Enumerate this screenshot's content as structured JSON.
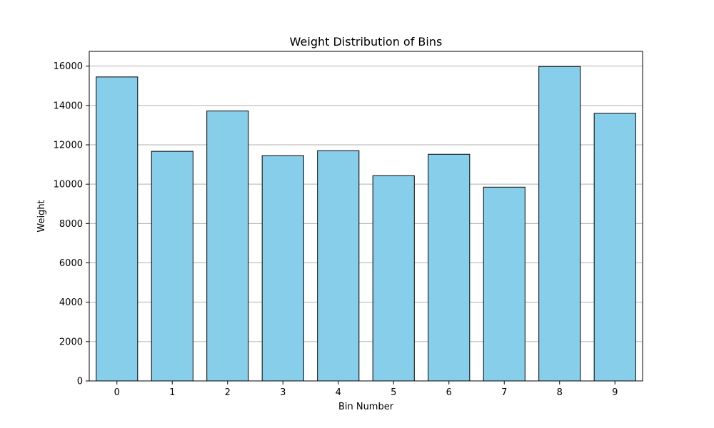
{
  "chart_data": {
    "type": "bar",
    "title": "Weight Distribution of Bins",
    "xlabel": "Bin Number",
    "ylabel": "Weight",
    "categories": [
      "0",
      "1",
      "2",
      "3",
      "4",
      "5",
      "6",
      "7",
      "8",
      "9"
    ],
    "values": [
      15450,
      11670,
      13720,
      11450,
      11700,
      10430,
      11520,
      9850,
      15980,
      13600
    ],
    "ylim": [
      0,
      16750
    ],
    "yticks": [
      0,
      2000,
      4000,
      6000,
      8000,
      10000,
      12000,
      14000,
      16000
    ],
    "ytick_labels": [
      "0",
      "2000",
      "4000",
      "6000",
      "8000",
      "10000",
      "12000",
      "14000",
      "16000"
    ],
    "grid": "y",
    "bar_color": "#87ceeb",
    "bar_edge_color": "#000000",
    "grid_color": "#b0b0b0"
  }
}
